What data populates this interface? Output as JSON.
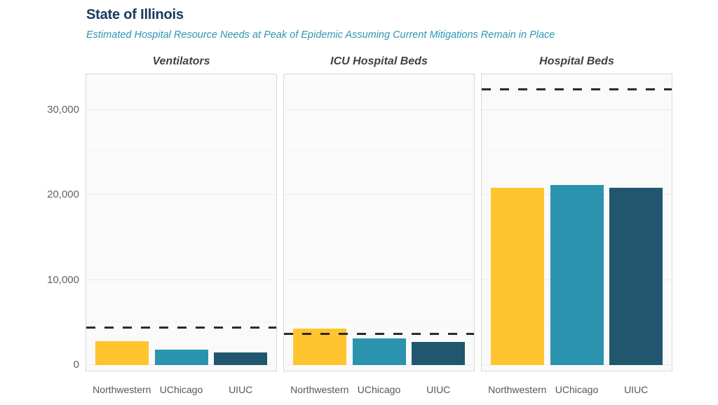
{
  "header": {
    "title": "State of Illinois",
    "subtitle": "Estimated Hospital Resource Needs at Peak of Epidemic Assuming Current Mitigations Remain in Place",
    "title_color": "#17395E",
    "subtitle_color": "#2C96B2"
  },
  "chart_data": {
    "type": "bar",
    "title": "State of Illinois",
    "subtitle": "Estimated Hospital Resource Needs at Peak of Epidemic Assuming Current Mitigations Remain in Place",
    "categories": [
      "Northwestern",
      "UChicago",
      "UIUC"
    ],
    "panels": [
      {
        "title": "Ventilators",
        "values": [
          2800,
          1850,
          1450
        ],
        "capacity_line": 4400
      },
      {
        "title": "ICU Hospital Beds",
        "values": [
          4250,
          3100,
          2750
        ],
        "capacity_line": 3700
      },
      {
        "title": "Hospital Beds",
        "values": [
          20800,
          21150,
          20800
        ],
        "capacity_line": 32400
      }
    ],
    "series_colors": {
      "Northwestern": "#FFC42E",
      "UChicago": "#2B93AE",
      "UIUC": "#20566E"
    },
    "capacity_line": {
      "color": "#2B2B2B",
      "style": "dashed",
      "meaning": "estimated capacity"
    },
    "y_axis": {
      "ticks": [
        0,
        10000,
        20000,
        30000
      ],
      "tick_labels": [
        "0",
        "10,000",
        "20,000",
        "30,000"
      ],
      "minor_ticks": [
        5000,
        15000,
        25000
      ],
      "ylim": [
        0,
        34300
      ],
      "gridlines": true
    },
    "legend_position": "none",
    "panel_background": "#fafafa",
    "panel_border": "#d9d9d9"
  }
}
